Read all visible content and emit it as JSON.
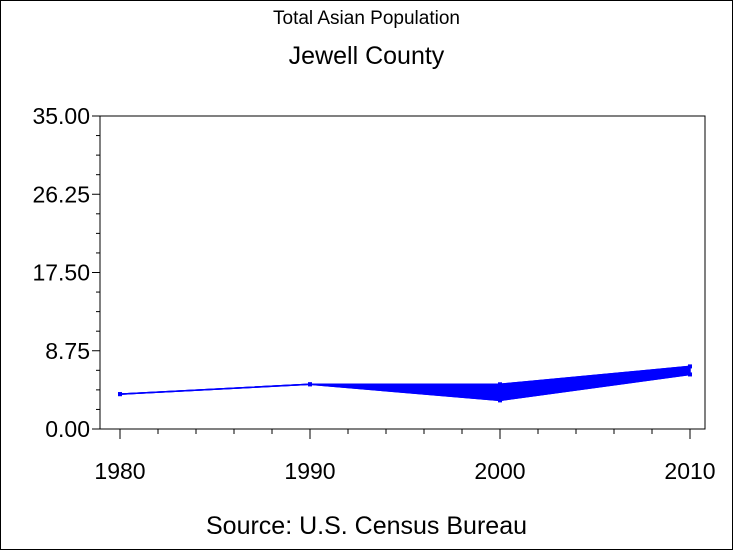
{
  "chart_data": {
    "type": "line",
    "title": "Total Asian Population",
    "subtitle": "Jewell County",
    "source": "Source: U.S. Census Bureau",
    "x": [
      1980,
      1990,
      2000,
      2010
    ],
    "x_tick_labels": [
      "1980",
      "1990",
      "2000",
      "2010"
    ],
    "ylim": [
      0,
      35
    ],
    "y_ticks": [
      0,
      8.75,
      17.5,
      26.25,
      35
    ],
    "y_tick_labels": [
      "0.00",
      "8.75",
      "17.50",
      "26.25",
      "35.00"
    ],
    "series": [
      {
        "color": "#0000ff",
        "band": true,
        "upper": [
          3.9,
          5.0,
          5.0,
          7.0
        ],
        "lower": [
          3.9,
          5.0,
          3.2,
          6.1
        ]
      }
    ],
    "grid": false
  }
}
